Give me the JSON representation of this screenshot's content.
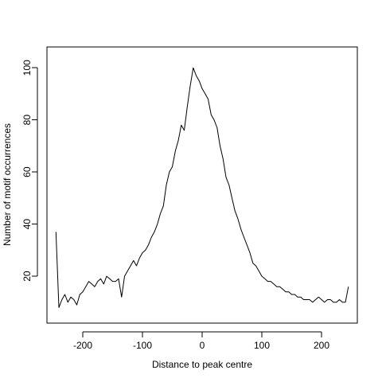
{
  "chart_data": {
    "type": "line",
    "title": "",
    "xlabel": "Distance to peak centre",
    "ylabel": "Number of motif occurrences",
    "xlim": [
      -260,
      260
    ],
    "ylim": [
      2,
      108
    ],
    "xticks": [
      -200,
      -100,
      0,
      100,
      200
    ],
    "yticks": [
      20,
      40,
      60,
      80,
      100
    ],
    "xtick_labels": [
      "-200",
      "-100",
      "0",
      "100",
      "200"
    ],
    "ytick_labels": [
      "20",
      "40",
      "60",
      "80",
      "100"
    ],
    "grid": false,
    "legend": "none",
    "line_color": "#000000",
    "series": [
      {
        "x": [
          -245,
          -240,
          -235,
          -230,
          -225,
          -220,
          -215,
          -210,
          -205,
          -200,
          -195,
          -190,
          -185,
          -180,
          -175,
          -170,
          -165,
          -160,
          -155,
          -150,
          -145,
          -140,
          -135,
          -130,
          -125,
          -120,
          -115,
          -110,
          -105,
          -100,
          -95,
          -90,
          -85,
          -80,
          -75,
          -70,
          -65,
          -60,
          -55,
          -50,
          -45,
          -40,
          -35,
          -30,
          -25,
          -20,
          -15,
          -10,
          -5,
          0,
          5,
          10,
          15,
          20,
          25,
          30,
          35,
          40,
          45,
          50,
          55,
          60,
          65,
          70,
          75,
          80,
          85,
          90,
          95,
          100,
          105,
          110,
          115,
          120,
          125,
          130,
          135,
          140,
          145,
          150,
          155,
          160,
          165,
          170,
          175,
          180,
          185,
          190,
          195,
          200,
          205,
          210,
          215,
          220,
          225,
          230,
          235,
          240,
          245
        ],
        "values": [
          37,
          8,
          11,
          13,
          10,
          12,
          11,
          9,
          13,
          14,
          16,
          18,
          17,
          16,
          18,
          19,
          17,
          20,
          19,
          18,
          18,
          19,
          12,
          20,
          22,
          24,
          26,
          24,
          27,
          29,
          30,
          32,
          35,
          37,
          40,
          44,
          47,
          55,
          60,
          62,
          68,
          72,
          78,
          76,
          85,
          93,
          100,
          97,
          95,
          92,
          90,
          88,
          82,
          80,
          77,
          70,
          65,
          58,
          55,
          50,
          45,
          42,
          38,
          35,
          32,
          29,
          25,
          24,
          22,
          20,
          19,
          18,
          18,
          17,
          16,
          16,
          15,
          14,
          14,
          13,
          13,
          12,
          12,
          11,
          11,
          11,
          10,
          11,
          12,
          11,
          10,
          11,
          11,
          10,
          10,
          11,
          10,
          10,
          16
        ]
      }
    ]
  }
}
